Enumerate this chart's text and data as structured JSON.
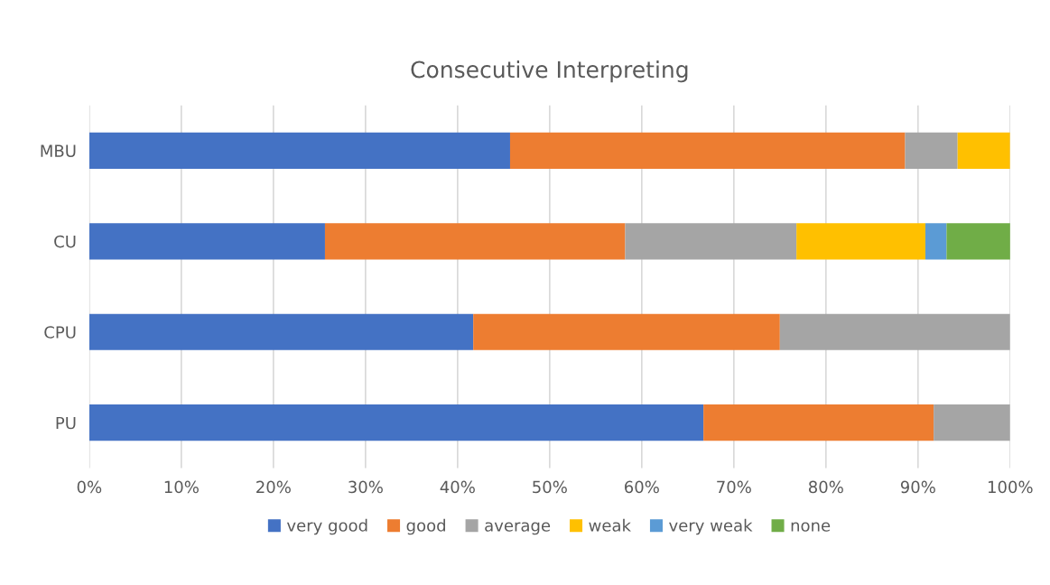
{
  "chart_data": {
    "type": "bar",
    "orientation": "horizontal",
    "stacked": true,
    "title": "Consecutive Interpreting",
    "categories": [
      "MBU",
      "CU",
      "CPU",
      "PU"
    ],
    "series": [
      {
        "name": "very good",
        "color": "#4472c4",
        "values": [
          45.7,
          25.6,
          41.7,
          66.7
        ]
      },
      {
        "name": "good",
        "color": "#ed7d31",
        "values": [
          42.9,
          32.6,
          33.3,
          25.0
        ]
      },
      {
        "name": "average",
        "color": "#a5a5a5",
        "values": [
          5.7,
          18.6,
          25.0,
          8.3
        ]
      },
      {
        "name": "weak",
        "color": "#ffc000",
        "values": [
          5.7,
          14.0,
          0,
          0
        ]
      },
      {
        "name": "very weak",
        "color": "#5b9bd5",
        "values": [
          0,
          2.3,
          0,
          0
        ]
      },
      {
        "name": "none",
        "color": "#70ad47",
        "values": [
          0,
          7.0,
          0,
          0
        ]
      }
    ],
    "xlim": [
      0,
      100
    ],
    "xticks": [
      {
        "value": 0,
        "label": "0%"
      },
      {
        "value": 10,
        "label": "10%"
      },
      {
        "value": 20,
        "label": "20%"
      },
      {
        "value": 30,
        "label": "30%"
      },
      {
        "value": 40,
        "label": "40%"
      },
      {
        "value": 50,
        "label": "50%"
      },
      {
        "value": 60,
        "label": "60%"
      },
      {
        "value": 70,
        "label": "70%"
      },
      {
        "value": 80,
        "label": "80%"
      },
      {
        "value": 90,
        "label": "90%"
      },
      {
        "value": 100,
        "label": "100%"
      }
    ],
    "grid": "x",
    "legend": "bottom"
  }
}
